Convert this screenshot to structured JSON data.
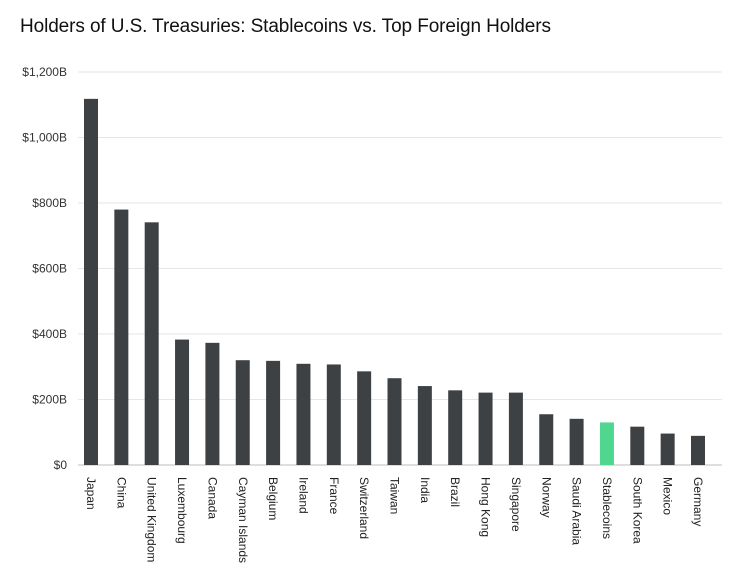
{
  "chart_data": {
    "type": "bar",
    "title": "Holders of U.S. Treasuries: Stablecoins vs. Top Foreign Holders",
    "xlabel": "",
    "ylabel": "",
    "ylim": [
      0,
      1200
    ],
    "yticks": [
      {
        "value": 0,
        "label": "$0"
      },
      {
        "value": 200,
        "label": "$200B"
      },
      {
        "value": 400,
        "label": "$400B"
      },
      {
        "value": 600,
        "label": "$600B"
      },
      {
        "value": 800,
        "label": "$800B"
      },
      {
        "value": 1000,
        "label": "$1,000B"
      },
      {
        "value": 1200,
        "label": "$1,200B"
      }
    ],
    "grid": true,
    "legend": "none",
    "categories": [
      "Japan",
      "China",
      "United Kingdom",
      "Luxembourg",
      "Canada",
      "Cayman Islands",
      "Belgium",
      "Ireland",
      "France",
      "Switzerland",
      "Taiwan",
      "India",
      "Brazil",
      "Hong Kong",
      "Singapore",
      "Norway",
      "Saudi Arabia",
      "Stablecoins",
      "South Korea",
      "Mexico",
      "Germany"
    ],
    "values": [
      1118,
      780,
      741,
      383,
      373,
      320,
      318,
      309,
      307,
      286,
      265,
      241,
      228,
      221,
      221,
      155,
      141,
      130,
      117,
      96,
      89
    ],
    "colors": {
      "default": "#3e4144",
      "highlight": "#4fd68f",
      "highlight_category": "Stablecoins",
      "grid": "#e6e6e6",
      "axis": "#bdbdbd"
    }
  }
}
